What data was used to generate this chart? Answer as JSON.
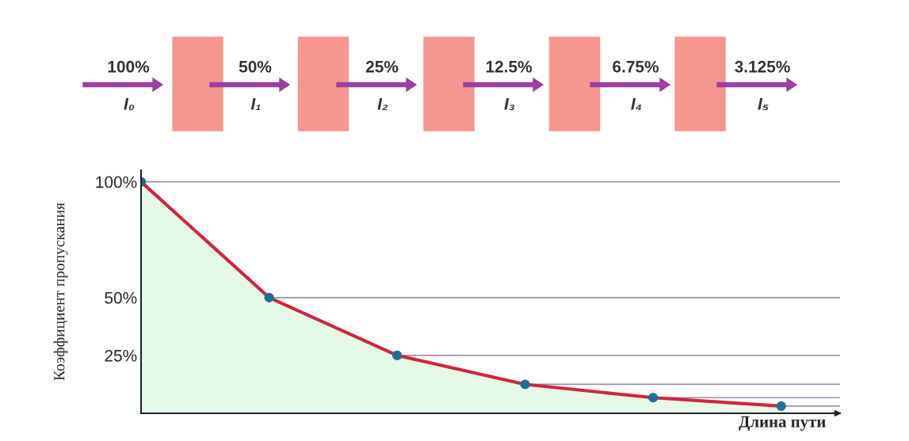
{
  "chart_data": {
    "type": "area",
    "xlabel": "Длина пути",
    "ylabel": "Коэффициент пропускания",
    "categories": [
      null,
      null,
      null,
      null,
      null,
      null
    ],
    "series": [
      {
        "color": "#d0263e",
        "values": [
          100,
          50,
          25,
          12.5,
          6.75,
          3.125
        ]
      }
    ],
    "ylim": [
      0,
      105
    ],
    "yticks": [
      {
        "value": 100,
        "label": "100%"
      },
      {
        "value": 50,
        "label": "50%"
      },
      {
        "value": 25,
        "label": "25%"
      },
      {
        "value": 12.5,
        "label": null
      },
      {
        "value": 6.75,
        "label": null
      },
      {
        "value": 3.125,
        "label": null
      }
    ],
    "grid": "y",
    "marker": "circle",
    "line_style": "solid",
    "annotations": [
      "100%",
      "I₀",
      "50%",
      "I₁",
      "25%",
      "I₂",
      "12.5%",
      "I₃",
      "6.75%",
      "I₄",
      "3.125%",
      "I₅"
    ]
  }
}
